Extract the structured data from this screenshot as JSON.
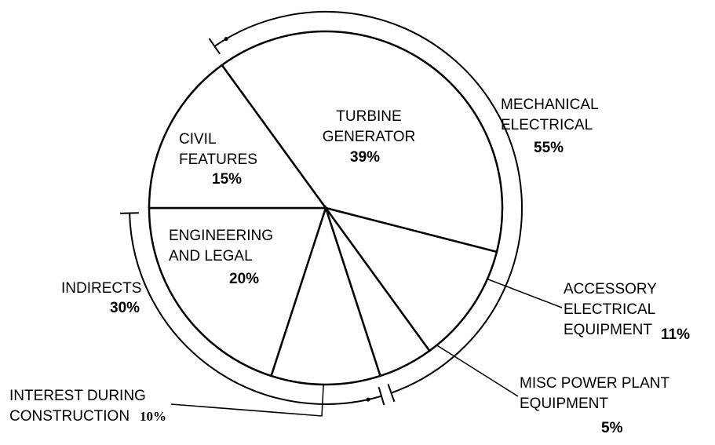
{
  "chart_data": {
    "type": "pie",
    "categories": [
      "TURBINE GENERATOR",
      "ACCESSORY ELECTRICAL EQUIPMENT",
      "MISC POWER PLANT EQUIPMENT",
      "INTEREST DURING CONSTRUCTION",
      "ENGINEERING AND LEGAL",
      "CIVIL FEATURES"
    ],
    "values": [
      39,
      11,
      5,
      10,
      20,
      15
    ],
    "value_labels": [
      "39%",
      "11%",
      "5%",
      "10%",
      "20%",
      "15%"
    ],
    "color": "#ffffff",
    "groups": [
      {
        "name": "MECHANICAL ELECTRICAL",
        "value": 55,
        "value_label": "55%"
      },
      {
        "name": "INDIRECTS",
        "value": 30,
        "value_label": "30%"
      }
    ]
  }
}
